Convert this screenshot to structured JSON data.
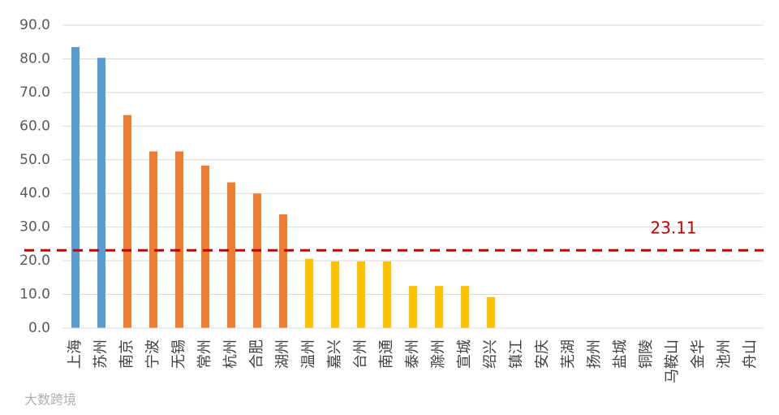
{
  "chart_data": {
    "type": "bar",
    "categories": [
      "上海",
      "苏州",
      "南京",
      "宁波",
      "无锡",
      "常州",
      "杭州",
      "合肥",
      "湖州",
      "温州",
      "嘉兴",
      "台州",
      "南通",
      "泰州",
      "滁州",
      "宣城",
      "绍兴",
      "镇江",
      "安庆",
      "芜湖",
      "扬州",
      "盐城",
      "铜陵",
      "马鞍山",
      "金华",
      "池州",
      "舟山"
    ],
    "values": [
      83.5,
      80.3,
      63.3,
      52.5,
      52.5,
      48.3,
      43.3,
      40.0,
      33.8,
      20.6,
      19.8,
      19.8,
      19.8,
      12.5,
      12.5,
      12.5,
      9.2,
      0,
      0,
      0,
      0,
      0,
      0,
      0,
      0,
      0,
      0
    ],
    "colors": [
      "#5b9bd5",
      "#5b9bd5",
      "#ed7d31",
      "#ed7d31",
      "#ed7d31",
      "#ed7d31",
      "#ed7d31",
      "#ed7d31",
      "#ed7d31",
      "#ffc000",
      "#ffc000",
      "#ffc000",
      "#ffc000",
      "#ffc000",
      "#ffc000",
      "#ffc000",
      "#ffc000",
      "#ffc000",
      "#ffc000",
      "#ffc000",
      "#ffc000",
      "#ffc000",
      "#ffc000",
      "#ffc000",
      "#ffc000",
      "#ffc000",
      "#ffc000"
    ],
    "ylim": [
      0,
      90
    ],
    "yticks": [
      {
        "value": 0,
        "label": "0.0"
      },
      {
        "value": 10,
        "label": "10.0"
      },
      {
        "value": 20,
        "label": "20.0"
      },
      {
        "value": 30,
        "label": "30.0"
      },
      {
        "value": 40,
        "label": "40.0"
      },
      {
        "value": 50,
        "label": "50.0"
      },
      {
        "value": 60,
        "label": "60.0"
      },
      {
        "value": 70,
        "label": "70.0"
      },
      {
        "value": 80,
        "label": "80.0"
      },
      {
        "value": 90,
        "label": "90.0"
      }
    ],
    "grid": true,
    "reference_line": {
      "value": 23.11,
      "color": "#c00000"
    }
  },
  "watermark": "大数跨境"
}
